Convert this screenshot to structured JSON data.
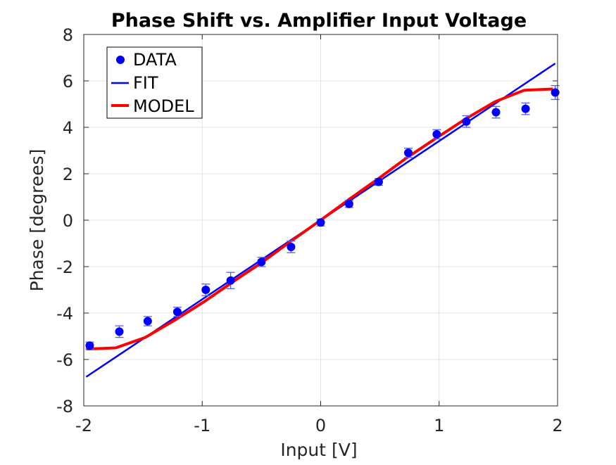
{
  "chart_data": {
    "type": "line",
    "title": "Phase Shift vs. Amplifier Input Voltage",
    "xlabel": "Input [V]",
    "ylabel": "Phase [degrees]",
    "xlim": [
      -2,
      2
    ],
    "ylim": [
      -8,
      8
    ],
    "xticks": [
      -2,
      -1,
      0,
      1,
      2
    ],
    "yticks": [
      -8,
      -6,
      -4,
      -2,
      0,
      2,
      4,
      6,
      8
    ],
    "xtick_labels": [
      "-2",
      "-1",
      "0",
      "1",
      "2"
    ],
    "ytick_labels": [
      "-8",
      "-6",
      "-4",
      "-2",
      "0",
      "2",
      "4",
      "6",
      "8"
    ],
    "grid": true,
    "legend_position": "top-left",
    "series": [
      {
        "name": "DATA",
        "kind": "scatter-errorbar",
        "color": "#0000ff",
        "x": [
          -1.95,
          -1.7,
          -1.46,
          -1.21,
          -0.97,
          -0.76,
          -0.5,
          -0.25,
          0.0,
          0.24,
          0.49,
          0.74,
          0.98,
          1.23,
          1.48,
          1.73,
          1.98
        ],
        "y": [
          -5.4,
          -4.8,
          -4.35,
          -3.95,
          -3.0,
          -2.6,
          -1.8,
          -1.15,
          -0.1,
          0.7,
          1.65,
          2.9,
          3.7,
          4.25,
          4.65,
          4.8,
          5.5
        ],
        "err": [
          0.15,
          0.25,
          0.2,
          0.2,
          0.25,
          0.35,
          0.2,
          0.25,
          0.15,
          0.15,
          0.15,
          0.2,
          0.2,
          0.25,
          0.25,
          0.25,
          0.3
        ]
      },
      {
        "name": "FIT",
        "kind": "line",
        "color": "#0000ff",
        "x": [
          -1.98,
          1.98
        ],
        "y": [
          -6.75,
          6.75
        ]
      },
      {
        "name": "MODEL",
        "kind": "line",
        "color": "#ff0000",
        "x": [
          -1.98,
          -1.73,
          -1.48,
          -1.23,
          -0.98,
          -0.74,
          -0.49,
          -0.25,
          0.0,
          0.24,
          0.49,
          0.73,
          0.98,
          1.22,
          1.47,
          1.72,
          1.96
        ],
        "y": [
          -5.55,
          -5.5,
          -5.05,
          -4.3,
          -3.5,
          -2.65,
          -1.8,
          -0.9,
          0.0,
          0.9,
          1.8,
          2.7,
          3.55,
          4.35,
          5.1,
          5.6,
          5.65
        ]
      }
    ]
  }
}
